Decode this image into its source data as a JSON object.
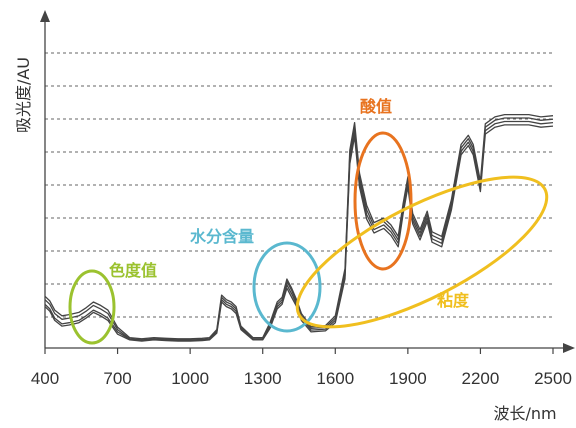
{
  "chart_data": {
    "type": "line",
    "xlabel": "波长/nm",
    "ylabel": "吸光度/AU",
    "xlim": [
      400,
      2500
    ],
    "x_ticks": [
      "400",
      "700",
      "1000",
      "1300",
      "1600",
      "1900",
      "2200",
      "2500"
    ],
    "grid": "horizontal dashed",
    "x": [
      400,
      420,
      440,
      470,
      500,
      540,
      570,
      600,
      630,
      660,
      700,
      750,
      800,
      850,
      900,
      950,
      1000,
      1050,
      1080,
      1110,
      1130,
      1150,
      1170,
      1190,
      1210,
      1260,
      1300,
      1330,
      1360,
      1380,
      1400,
      1420,
      1440,
      1460,
      1500,
      1560,
      1600,
      1640,
      1660,
      1680,
      1700,
      1730,
      1760,
      1800,
      1830,
      1860,
      1880,
      1900,
      1920,
      1950,
      1980,
      2000,
      2040,
      2080,
      2100,
      2120,
      2150,
      2170,
      2200,
      2220,
      2260,
      2300,
      2350,
      2400,
      2450,
      2500
    ],
    "series": [
      {
        "values": [
          0.18,
          0.16,
          0.12,
          0.095,
          0.1,
          0.11,
          0.13,
          0.155,
          0.14,
          0.12,
          0.06,
          0.035,
          0.03,
          0.035,
          0.032,
          0.03,
          0.03,
          0.032,
          0.035,
          0.065,
          0.2,
          0.18,
          0.17,
          0.15,
          0.08,
          0.035,
          0.035,
          0.085,
          0.17,
          0.19,
          0.26,
          0.22,
          0.18,
          0.12,
          0.07,
          0.075,
          0.11,
          0.3,
          0.8,
          0.92,
          0.7,
          0.56,
          0.5,
          0.52,
          0.49,
          0.44,
          0.58,
          0.7,
          0.54,
          0.47,
          0.55,
          0.46,
          0.44,
          0.6,
          0.72,
          0.84,
          0.88,
          0.84,
          0.68,
          0.93,
          0.96,
          0.97,
          0.97,
          0.97,
          0.96,
          0.965
        ]
      },
      {
        "values": [
          0.21,
          0.19,
          0.15,
          0.125,
          0.13,
          0.14,
          0.16,
          0.185,
          0.17,
          0.15,
          0.08,
          0.04,
          0.035,
          0.04,
          0.038,
          0.035,
          0.035,
          0.037,
          0.04,
          0.075,
          0.22,
          0.2,
          0.19,
          0.17,
          0.09,
          0.04,
          0.04,
          0.1,
          0.19,
          0.21,
          0.29,
          0.25,
          0.2,
          0.14,
          0.085,
          0.09,
          0.13,
          0.33,
          0.84,
          0.96,
          0.74,
          0.6,
          0.53,
          0.55,
          0.52,
          0.47,
          0.61,
          0.73,
          0.57,
          0.5,
          0.58,
          0.49,
          0.47,
          0.63,
          0.75,
          0.87,
          0.91,
          0.87,
          0.71,
          0.96,
          0.99,
          1.0,
          1.0,
          1.0,
          0.99,
          0.995
        ]
      },
      {
        "values": [
          0.19,
          0.17,
          0.13,
          0.105,
          0.11,
          0.12,
          0.14,
          0.165,
          0.15,
          0.13,
          0.07,
          0.038,
          0.032,
          0.037,
          0.034,
          0.032,
          0.032,
          0.034,
          0.037,
          0.07,
          0.21,
          0.19,
          0.18,
          0.16,
          0.085,
          0.038,
          0.038,
          0.09,
          0.18,
          0.2,
          0.275,
          0.235,
          0.19,
          0.13,
          0.078,
          0.082,
          0.12,
          0.315,
          0.82,
          0.94,
          0.72,
          0.58,
          0.515,
          0.535,
          0.505,
          0.455,
          0.595,
          0.715,
          0.555,
          0.485,
          0.565,
          0.475,
          0.455,
          0.615,
          0.735,
          0.855,
          0.895,
          0.855,
          0.695,
          0.945,
          0.975,
          0.985,
          0.985,
          0.985,
          0.975,
          0.98
        ]
      },
      {
        "values": [
          0.225,
          0.205,
          0.165,
          0.14,
          0.145,
          0.155,
          0.175,
          0.2,
          0.185,
          0.165,
          0.09,
          0.045,
          0.04,
          0.045,
          0.042,
          0.04,
          0.04,
          0.042,
          0.045,
          0.08,
          0.23,
          0.21,
          0.2,
          0.18,
          0.095,
          0.045,
          0.045,
          0.11,
          0.2,
          0.22,
          0.3,
          0.26,
          0.21,
          0.15,
          0.092,
          0.098,
          0.14,
          0.345,
          0.86,
          0.98,
          0.76,
          0.62,
          0.545,
          0.565,
          0.535,
          0.485,
          0.625,
          0.745,
          0.585,
          0.515,
          0.595,
          0.505,
          0.485,
          0.645,
          0.765,
          0.885,
          0.925,
          0.885,
          0.725,
          0.975,
          1.005,
          1.015,
          1.015,
          1.015,
          1.005,
          1.01
        ]
      }
    ],
    "annotations": [
      {
        "label": "色度值",
        "color": "#9bc22f",
        "shape": "ellipse",
        "center_x_nm": 595,
        "center_y": 0.15
      },
      {
        "label": "水分含量",
        "color": "#5ab8cf",
        "shape": "ellipse",
        "center_x_nm": 1385,
        "center_y": 0.21
      },
      {
        "label": "酸值",
        "color": "#e8731f",
        "shape": "ellipse",
        "center_x_nm": 1800,
        "center_y": 0.66
      },
      {
        "label": "粘度",
        "color": "#f0bf1f",
        "shape": "tilted ellipse",
        "center_x_nm": 1920,
        "center_y": 0.45
      }
    ],
    "line_color": "#444444"
  }
}
